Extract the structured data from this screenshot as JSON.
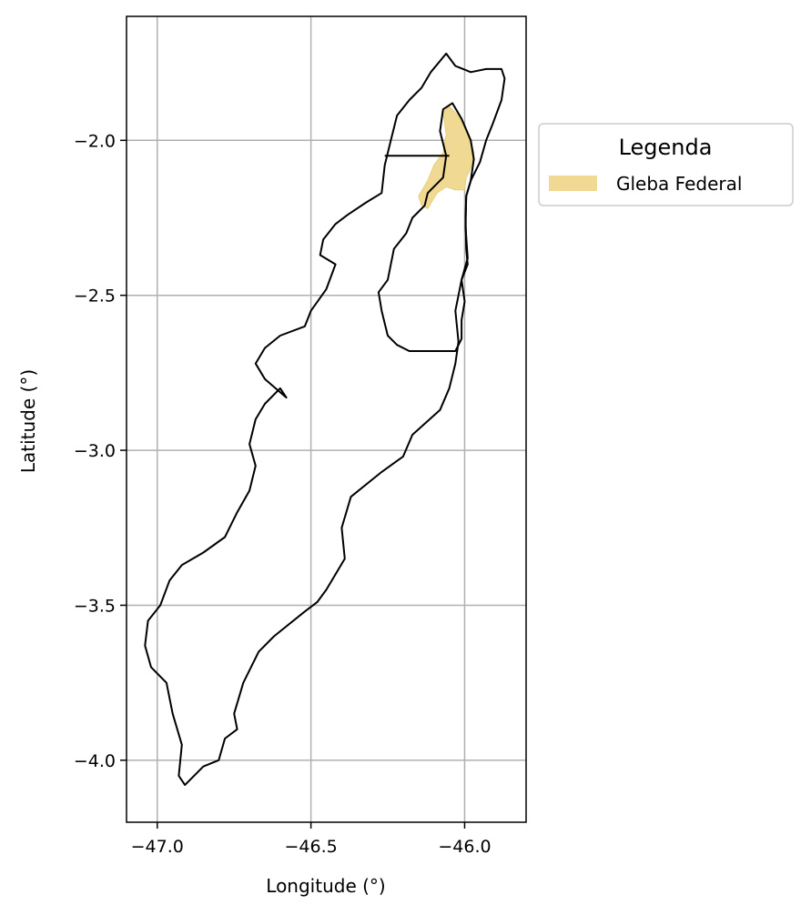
{
  "chart_data": {
    "type": "map",
    "xlabel": "Longitude (°)",
    "ylabel": "Latitude (°)",
    "xlim": [
      -47.1,
      -45.8
    ],
    "ylim": [
      -4.2,
      -1.6
    ],
    "xticks": [
      -47.0,
      -46.5,
      -46.0
    ],
    "xtick_labels": [
      "−47.0",
      "−46.5",
      "−46.0"
    ],
    "yticks": [
      -2.0,
      -2.5,
      -3.0,
      -3.5,
      -4.0
    ],
    "ytick_labels": [
      "−2.0",
      "−2.5",
      "−3.0",
      "−3.5",
      "−4.0"
    ],
    "grid": true,
    "legend": {
      "title": "Legenda",
      "placement": "outside-right-top",
      "entries": [
        {
          "label": "Gleba Federal",
          "color": "#f0d992"
        }
      ]
    },
    "colors": {
      "outline": "#000000",
      "gleba_fill": "#f0d992",
      "gleba_edge": "#e8cf7a",
      "grid": "#b0b0b0"
    },
    "boundaries": [
      {
        "name": "outer",
        "coords": [
          [
            -46.06,
            -1.72
          ],
          [
            -46.03,
            -1.76
          ],
          [
            -45.98,
            -1.78
          ],
          [
            -45.93,
            -1.77
          ],
          [
            -45.88,
            -1.77
          ],
          [
            -45.87,
            -1.8
          ],
          [
            -45.88,
            -1.87
          ],
          [
            -45.91,
            -1.95
          ],
          [
            -45.93,
            -2.0
          ],
          [
            -45.95,
            -2.07
          ],
          [
            -45.98,
            -2.13
          ],
          [
            -45.995,
            -2.18
          ],
          [
            -45.997,
            -2.25
          ],
          [
            -45.995,
            -2.35
          ],
          [
            -45.99,
            -2.4
          ],
          [
            -46.01,
            -2.45
          ],
          [
            -46.03,
            -2.55
          ],
          [
            -46.02,
            -2.65
          ],
          [
            -46.03,
            -2.72
          ],
          [
            -46.05,
            -2.8
          ],
          [
            -46.08,
            -2.87
          ],
          [
            -46.17,
            -2.95
          ],
          [
            -46.2,
            -3.02
          ],
          [
            -46.27,
            -3.07
          ],
          [
            -46.37,
            -3.15
          ],
          [
            -46.4,
            -3.25
          ],
          [
            -46.39,
            -3.35
          ],
          [
            -46.45,
            -3.45
          ],
          [
            -46.48,
            -3.49
          ],
          [
            -46.52,
            -3.52
          ],
          [
            -46.62,
            -3.6
          ],
          [
            -46.67,
            -3.65
          ],
          [
            -46.72,
            -3.75
          ],
          [
            -46.75,
            -3.85
          ],
          [
            -46.74,
            -3.9
          ],
          [
            -46.78,
            -3.93
          ],
          [
            -46.8,
            -4.0
          ],
          [
            -46.85,
            -4.02
          ],
          [
            -46.91,
            -4.08
          ],
          [
            -46.93,
            -4.05
          ],
          [
            -46.92,
            -3.95
          ],
          [
            -46.95,
            -3.85
          ],
          [
            -46.97,
            -3.75
          ],
          [
            -47.02,
            -3.7
          ],
          [
            -47.04,
            -3.63
          ],
          [
            -47.03,
            -3.55
          ],
          [
            -46.99,
            -3.5
          ],
          [
            -46.96,
            -3.42
          ],
          [
            -46.92,
            -3.37
          ],
          [
            -46.85,
            -3.33
          ],
          [
            -46.78,
            -3.28
          ],
          [
            -46.74,
            -3.2
          ],
          [
            -46.7,
            -3.13
          ],
          [
            -46.68,
            -3.05
          ],
          [
            -46.7,
            -2.98
          ],
          [
            -46.68,
            -2.9
          ],
          [
            -46.65,
            -2.85
          ],
          [
            -46.6,
            -2.8
          ],
          [
            -46.58,
            -2.83
          ],
          [
            -46.65,
            -2.77
          ],
          [
            -46.68,
            -2.72
          ],
          [
            -46.65,
            -2.67
          ],
          [
            -46.6,
            -2.63
          ],
          [
            -46.52,
            -2.6
          ],
          [
            -46.5,
            -2.55
          ],
          [
            -46.45,
            -2.48
          ],
          [
            -46.42,
            -2.4
          ],
          [
            -46.47,
            -2.37
          ],
          [
            -46.46,
            -2.32
          ],
          [
            -46.42,
            -2.27
          ],
          [
            -46.38,
            -2.24
          ],
          [
            -46.32,
            -2.2
          ],
          [
            -46.27,
            -2.17
          ],
          [
            -46.26,
            -2.08
          ],
          [
            -46.24,
            -2.0
          ],
          [
            -46.22,
            -1.92
          ],
          [
            -46.18,
            -1.87
          ],
          [
            -46.14,
            -1.83
          ],
          [
            -46.11,
            -1.78
          ],
          [
            -46.06,
            -1.72
          ]
        ]
      },
      {
        "name": "upper-divider",
        "coords": [
          [
            -46.26,
            -2.05
          ],
          [
            -46.05,
            -2.05
          ]
        ]
      },
      {
        "name": "inner",
        "coords": [
          [
            -46.07,
            -1.9
          ],
          [
            -46.04,
            -1.88
          ],
          [
            -46.01,
            -1.93
          ],
          [
            -45.98,
            -2.0
          ],
          [
            -45.97,
            -2.06
          ],
          [
            -45.98,
            -2.13
          ],
          [
            -45.995,
            -2.18
          ],
          [
            -45.997,
            -2.28
          ],
          [
            -45.99,
            -2.38
          ],
          [
            -46.01,
            -2.45
          ],
          [
            -46.0,
            -2.52
          ],
          [
            -46.01,
            -2.58
          ],
          [
            -46.01,
            -2.64
          ],
          [
            -46.03,
            -2.68
          ],
          [
            -46.1,
            -2.68
          ],
          [
            -46.18,
            -2.68
          ],
          [
            -46.22,
            -2.66
          ],
          [
            -46.25,
            -2.63
          ],
          [
            -46.27,
            -2.55
          ],
          [
            -46.28,
            -2.49
          ],
          [
            -46.25,
            -2.45
          ],
          [
            -46.23,
            -2.35
          ],
          [
            -46.19,
            -2.3
          ],
          [
            -46.17,
            -2.25
          ],
          [
            -46.13,
            -2.21
          ],
          [
            -46.12,
            -2.17
          ],
          [
            -46.07,
            -2.12
          ],
          [
            -46.06,
            -2.05
          ],
          [
            -46.08,
            -1.97
          ],
          [
            -46.07,
            -1.9
          ]
        ]
      }
    ],
    "gleba_federal": [
      [
        -46.07,
        -1.91
      ],
      [
        -46.05,
        -1.89
      ],
      [
        -46.02,
        -1.92
      ],
      [
        -45.99,
        -1.98
      ],
      [
        -45.97,
        -2.04
      ],
      [
        -45.98,
        -2.09
      ],
      [
        -45.995,
        -2.12
      ],
      [
        -46.0,
        -2.16
      ],
      [
        -46.03,
        -2.16
      ],
      [
        -46.06,
        -2.15
      ],
      [
        -46.09,
        -2.17
      ],
      [
        -46.12,
        -2.22
      ],
      [
        -46.14,
        -2.21
      ],
      [
        -46.15,
        -2.18
      ],
      [
        -46.12,
        -2.13
      ],
      [
        -46.1,
        -2.08
      ],
      [
        -46.07,
        -2.04
      ],
      [
        -46.06,
        -1.98
      ],
      [
        -46.07,
        -1.91
      ]
    ]
  }
}
